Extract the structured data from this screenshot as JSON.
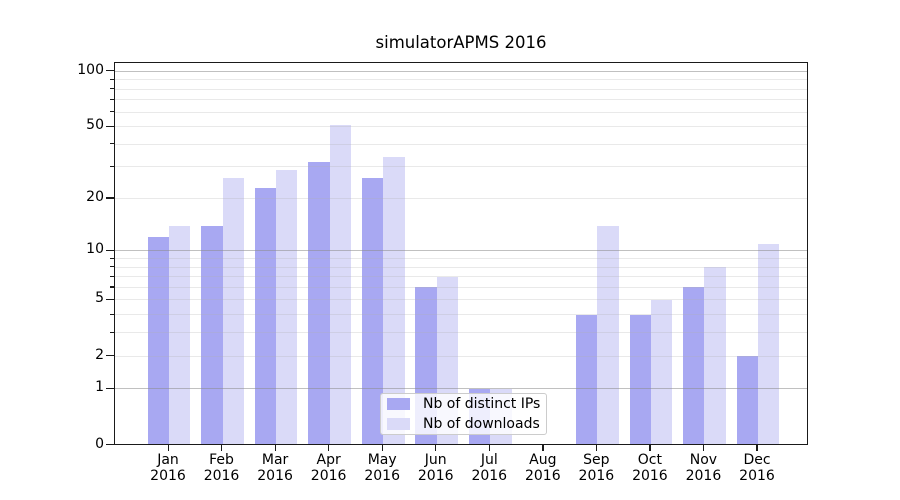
{
  "title": "simulatorAPMS 2016",
  "chart_data": {
    "type": "bar",
    "title": "simulatorAPMS 2016",
    "xlabel": "",
    "ylabel": "",
    "y_scale": "log1p",
    "categories": [
      "Jan",
      "Feb",
      "Mar",
      "Apr",
      "May",
      "Jun",
      "Jul",
      "Aug",
      "Sep",
      "Oct",
      "Nov",
      "Dec"
    ],
    "year": "2016",
    "series": [
      {
        "name": "Nb of distinct IPs",
        "color": "#a8a8f2",
        "values": [
          12,
          14,
          23,
          32,
          26,
          6,
          1,
          0,
          4,
          4,
          6,
          2
        ]
      },
      {
        "name": "Nb of downloads",
        "color": "#dadaf8",
        "values": [
          14,
          26,
          29,
          51,
          34,
          7,
          1,
          0,
          14,
          5,
          8,
          11
        ]
      }
    ],
    "y_ticks_labeled": [
      0,
      1,
      2,
      5,
      10,
      20,
      50,
      100
    ],
    "y_ticks_minor": [
      3,
      4,
      6,
      7,
      8,
      9,
      30,
      40,
      60,
      70,
      80,
      90
    ],
    "grid_major": [
      1,
      10,
      100
    ],
    "grid_minor": [
      2,
      3,
      4,
      5,
      6,
      7,
      8,
      9,
      20,
      30,
      40,
      50,
      60,
      70,
      80,
      90
    ],
    "ylim": [
      0,
      111
    ],
    "grid": "on",
    "legend_position": "lower-center"
  },
  "colors": {
    "bar_dark": "#a8a8f2",
    "bar_light": "#dadaf8",
    "grid_major": "rgba(140,140,140,0.55)",
    "grid_minor": "rgba(175,175,175,0.28)",
    "axis": "#1a1a1a",
    "background": "#ffffff"
  }
}
